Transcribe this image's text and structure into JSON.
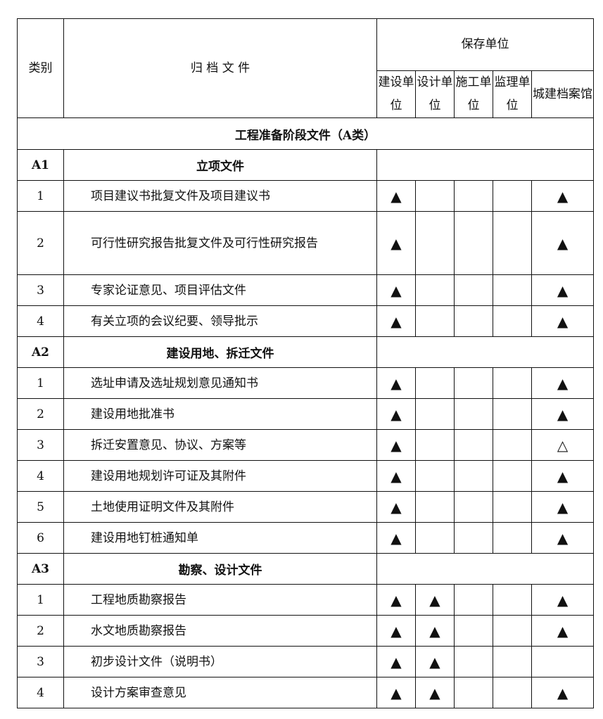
{
  "header": {
    "category": "类别",
    "document": "归 档 文 件",
    "storage_unit": "保存单位",
    "units": [
      "建设单位",
      "设计单位",
      "施工单位",
      "监理单位",
      "城建档案馆"
    ]
  },
  "section_title": "工程准备阶段文件（A类）",
  "groups": [
    {
      "code": "A1",
      "title": "立项文件",
      "rows": [
        {
          "no": "1",
          "name": "项目建议书批复文件及项目建议书",
          "marks": [
            "▲",
            "",
            "",
            "",
            "▲"
          ]
        },
        {
          "no": "2",
          "name": "可行性研究报告批复文件及可行性研究报告",
          "marks": [
            "▲",
            "",
            "",
            "",
            "▲"
          ]
        },
        {
          "no": "3",
          "name": "专家论证意见、项目评估文件",
          "marks": [
            "▲",
            "",
            "",
            "",
            "▲"
          ]
        },
        {
          "no": "4",
          "name": "有关立项的会议纪要、领导批示",
          "marks": [
            "▲",
            "",
            "",
            "",
            "▲"
          ]
        }
      ]
    },
    {
      "code": "A2",
      "title": "建设用地、拆迁文件",
      "rows": [
        {
          "no": "1",
          "name": "选址申请及选址规划意见通知书",
          "marks": [
            "▲",
            "",
            "",
            "",
            "▲"
          ]
        },
        {
          "no": "2",
          "name": "建设用地批准书",
          "marks": [
            "▲",
            "",
            "",
            "",
            "▲"
          ]
        },
        {
          "no": "3",
          "name": "拆迁安置意见、协议、方案等",
          "marks": [
            "▲",
            "",
            "",
            "",
            "△"
          ]
        },
        {
          "no": "4",
          "name": "建设用地规划许可证及其附件",
          "marks": [
            "▲",
            "",
            "",
            "",
            "▲"
          ]
        },
        {
          "no": "5",
          "name": "土地使用证明文件及其附件",
          "marks": [
            "▲",
            "",
            "",
            "",
            "▲"
          ]
        },
        {
          "no": "6",
          "name": "建设用地钉桩通知单",
          "marks": [
            "▲",
            "",
            "",
            "",
            "▲"
          ]
        }
      ]
    },
    {
      "code": "A3",
      "title": "勘察、设计文件",
      "rows": [
        {
          "no": "1",
          "name": "工程地质勘察报告",
          "marks": [
            "▲",
            "▲",
            "",
            "",
            "▲"
          ]
        },
        {
          "no": "2",
          "name": "水文地质勘察报告",
          "marks": [
            "▲",
            "▲",
            "",
            "",
            "▲"
          ]
        },
        {
          "no": "3",
          "name": "初步设计文件（说明书）",
          "marks": [
            "▲",
            "▲",
            "",
            "",
            ""
          ]
        },
        {
          "no": "4",
          "name": "设计方案审查意见",
          "marks": [
            "▲",
            "▲",
            "",
            "",
            "▲"
          ]
        }
      ]
    }
  ]
}
